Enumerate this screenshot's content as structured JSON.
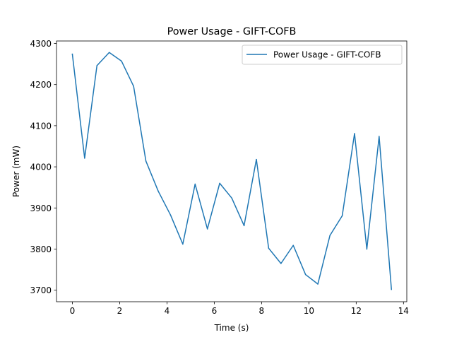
{
  "chart_data": {
    "type": "line",
    "title": "Power Usage - GIFT-COFB",
    "xlabel": "Time (s)",
    "ylabel": "Power (mW)",
    "xlim": [
      -0.67,
      14.14
    ],
    "ylim": [
      3672,
      4306
    ],
    "xticks": [
      0,
      2,
      4,
      6,
      8,
      10,
      12,
      14
    ],
    "yticks": [
      3700,
      3800,
      3900,
      4000,
      4100,
      4200,
      4300
    ],
    "grid": false,
    "legend_position": "upper right",
    "series": [
      {
        "name": "Power Usage - GIFT-COFB",
        "color": "#1f77b4",
        "x": [
          0.0,
          0.52,
          1.04,
          1.56,
          2.08,
          2.59,
          3.11,
          3.63,
          4.15,
          4.67,
          5.19,
          5.71,
          6.23,
          6.74,
          7.26,
          7.78,
          8.3,
          8.82,
          9.34,
          9.86,
          10.38,
          10.89,
          11.41,
          11.93,
          12.45,
          12.97,
          13.49
        ],
        "values": [
          4274,
          4021,
          4246,
          4278,
          4257,
          4196,
          4014,
          3941,
          3883,
          3812,
          3958,
          3849,
          3960,
          3924,
          3857,
          4018,
          3802,
          3765,
          3809,
          3738,
          3715,
          3833,
          3881,
          4081,
          3800,
          4074,
          3702
        ]
      }
    ]
  }
}
